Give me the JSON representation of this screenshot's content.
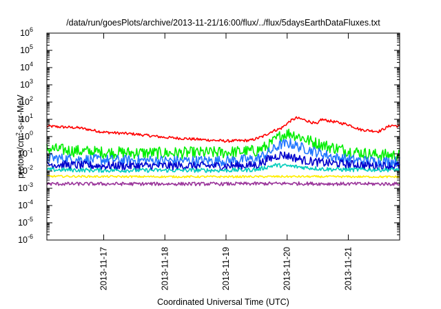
{
  "chart_data": {
    "type": "line",
    "title": "/data/run/goesPlots/archive/2013-11-21/16:00/flux/../flux/5daysEarthDataFluxes.txt",
    "xlabel": "Coordinated Universal Time (UTC)",
    "ylabel": {
      "pre": "protons/cm",
      "sup": "2",
      "post": "-s-sr-MeV"
    },
    "x_unit": "days since 2013-11-16 00:00 UTC",
    "xlim": [
      0.07,
      5.84
    ],
    "x_ticks": [
      {
        "value": 1,
        "label": "2013-11-17"
      },
      {
        "value": 2,
        "label": "2013-11-18"
      },
      {
        "value": 3,
        "label": "2013-11-19"
      },
      {
        "value": 4,
        "label": "2013-11-20"
      },
      {
        "value": 5,
        "label": "2013-11-21"
      }
    ],
    "y_scale": "log",
    "ylim_exponent": [
      -6,
      6
    ],
    "y_ticks": [
      {
        "base": "10",
        "exp": "-6"
      },
      {
        "base": "10",
        "exp": "-5"
      },
      {
        "base": "10",
        "exp": "-4"
      },
      {
        "base": "10",
        "exp": "-3"
      },
      {
        "base": "10",
        "exp": "-2"
      },
      {
        "base": "10",
        "exp": "-1"
      },
      {
        "base": "10",
        "exp": "0"
      },
      {
        "base": "10",
        "exp": "1"
      },
      {
        "base": "10",
        "exp": "2"
      },
      {
        "base": "10",
        "exp": "3"
      },
      {
        "base": "10",
        "exp": "4"
      },
      {
        "base": "10",
        "exp": "5"
      },
      {
        "base": "10",
        "exp": "6"
      }
    ],
    "grid": false,
    "legend": "none",
    "series": [
      {
        "color": "#ff0000",
        "noise": 0.08,
        "x": [
          0.07,
          0.6,
          1.0,
          1.5,
          2.0,
          2.5,
          3.0,
          3.4,
          3.6,
          3.75,
          3.9,
          4.05,
          4.15,
          4.3,
          4.5,
          4.55,
          4.7,
          5.0,
          5.2,
          5.5,
          5.7,
          5.84
        ],
        "y": [
          4.0,
          3.2,
          1.8,
          1.4,
          0.9,
          0.7,
          0.55,
          0.6,
          1.0,
          2.0,
          3.0,
          8.0,
          12.0,
          9.0,
          5.0,
          10.0,
          8.0,
          5.0,
          2.5,
          2.0,
          4.5,
          4.0
        ]
      },
      {
        "color": "#00ee00",
        "noise": 0.35,
        "x": [
          0.07,
          0.5,
          1.0,
          2.0,
          3.0,
          3.5,
          3.7,
          3.9,
          4.05,
          4.2,
          4.4,
          4.7,
          5.0,
          5.4,
          5.84
        ],
        "y": [
          0.2,
          0.15,
          0.12,
          0.11,
          0.12,
          0.15,
          0.3,
          1.2,
          1.6,
          1.0,
          0.5,
          0.25,
          0.15,
          0.09,
          0.08
        ]
      },
      {
        "color": "#2277ff",
        "noise": 0.3,
        "x": [
          0.07,
          0.5,
          1.0,
          2.0,
          3.0,
          3.5,
          3.7,
          3.9,
          4.05,
          4.2,
          4.5,
          4.8,
          5.2,
          5.84
        ],
        "y": [
          0.06,
          0.05,
          0.045,
          0.04,
          0.04,
          0.05,
          0.12,
          0.35,
          0.4,
          0.25,
          0.12,
          0.06,
          0.04,
          0.035
        ]
      },
      {
        "color": "#0000cc",
        "noise": 0.25,
        "x": [
          0.07,
          0.5,
          1.0,
          2.0,
          3.0,
          3.5,
          3.7,
          3.9,
          4.05,
          4.3,
          4.6,
          5.0,
          5.4,
          5.84
        ],
        "y": [
          0.025,
          0.022,
          0.02,
          0.02,
          0.02,
          0.022,
          0.05,
          0.09,
          0.07,
          0.04,
          0.03,
          0.025,
          0.02,
          0.02
        ]
      },
      {
        "color": "#00ccbb",
        "noise": 0.12,
        "x": [
          0.07,
          1.0,
          2.0,
          3.0,
          3.5,
          3.8,
          4.0,
          4.3,
          4.6,
          5.0,
          5.84
        ],
        "y": [
          0.012,
          0.011,
          0.011,
          0.011,
          0.012,
          0.022,
          0.02,
          0.016,
          0.013,
          0.012,
          0.012
        ]
      },
      {
        "color": "#ffee00",
        "noise": 0.06,
        "x": [
          0.07,
          1.0,
          2.0,
          3.0,
          4.0,
          5.0,
          5.84
        ],
        "y": [
          0.005,
          0.0048,
          0.0047,
          0.0047,
          0.0048,
          0.0047,
          0.0046
        ]
      },
      {
        "color": "#993399",
        "noise": 0.1,
        "x": [
          0.07,
          1.0,
          2.0,
          3.0,
          4.0,
          5.0,
          5.84
        ],
        "y": [
          0.0018,
          0.0018,
          0.0018,
          0.0018,
          0.0019,
          0.0018,
          0.0018
        ]
      }
    ]
  }
}
